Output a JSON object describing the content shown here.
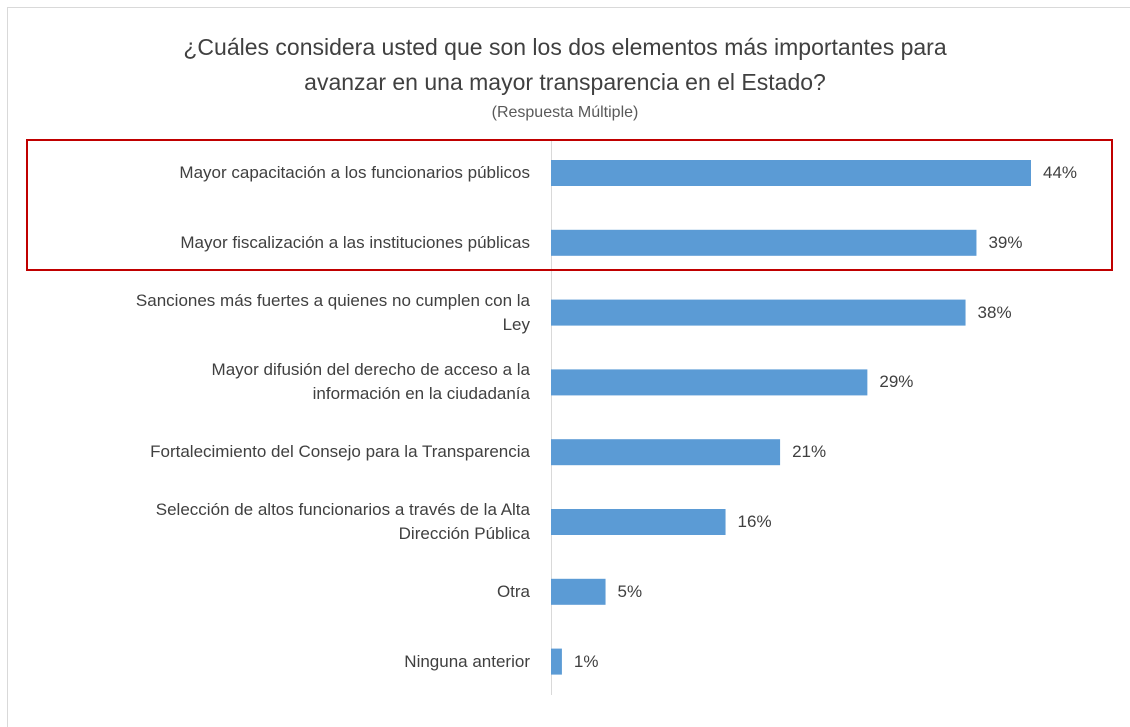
{
  "chart_data": {
    "type": "bar",
    "orientation": "horizontal",
    "title": "¿Cuáles considera usted que son los dos elementos más importantes para\navanzar en una mayor transparencia en el Estado?",
    "subtitle": "(Respuesta Múltiple)",
    "categories": [
      "Mayor capacitación a los funcionarios públicos",
      "Mayor fiscalización a las instituciones públicas",
      "Sanciones más fuertes a quienes no cumplen con la\nLey",
      "Mayor difusión del derecho de acceso a la\ninformación en la ciudadanía",
      "Fortalecimiento del Consejo para la Transparencia",
      "Selección de altos funcionarios a través de la Alta\nDirección Pública",
      "Otra",
      "Ninguna anterior"
    ],
    "values": [
      44,
      39,
      38,
      29,
      21,
      16,
      5,
      1
    ],
    "value_labels": [
      "44%",
      "39%",
      "38%",
      "29%",
      "21%",
      "16%",
      "5%",
      "1%"
    ],
    "color": "#5b9bd5"
  }
}
